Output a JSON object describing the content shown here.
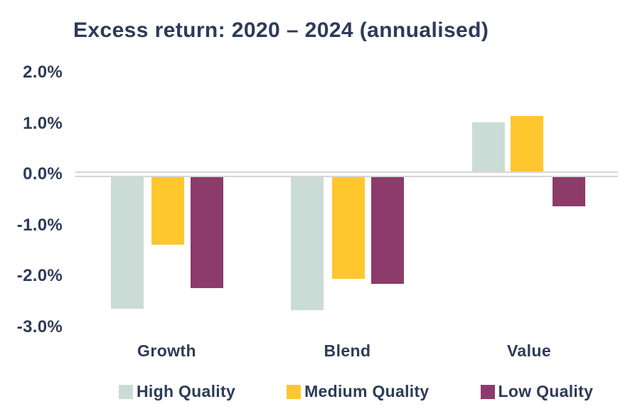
{
  "title": "Excess return: 2020 – 2024 (annualised)",
  "colors": {
    "text": "#2D3B58",
    "baseline": "#D6D6D6",
    "high_quality": "#CBDBD5",
    "medium_quality": "#FFC62E",
    "low_quality": "#8C3B6B"
  },
  "chart_data": {
    "type": "bar",
    "title": "Excess return: 2020 – 2024 (annualised)",
    "categories": [
      "Growth",
      "Blend",
      "Value"
    ],
    "series": [
      {
        "name": "High Quality",
        "color": "#CBDBD5",
        "values": [
          -2.65,
          -2.67,
          1.02
        ]
      },
      {
        "name": "Medium Quality",
        "color": "#FFC62E",
        "values": [
          -1.38,
          -2.06,
          1.14
        ]
      },
      {
        "name": "Low Quality",
        "color": "#8C3B6B",
        "values": [
          -2.24,
          -2.16,
          -0.63
        ]
      }
    ],
    "yticks": [
      "2.0%",
      "1.0%",
      "0.0%",
      "-1.0%",
      "-2.0%",
      "-3.0%"
    ],
    "ytick_values": [
      2,
      1,
      0,
      -1,
      -2,
      -3
    ],
    "ylim": [
      -3.0,
      2.0
    ],
    "grid": false,
    "legend_position": "bottom"
  }
}
